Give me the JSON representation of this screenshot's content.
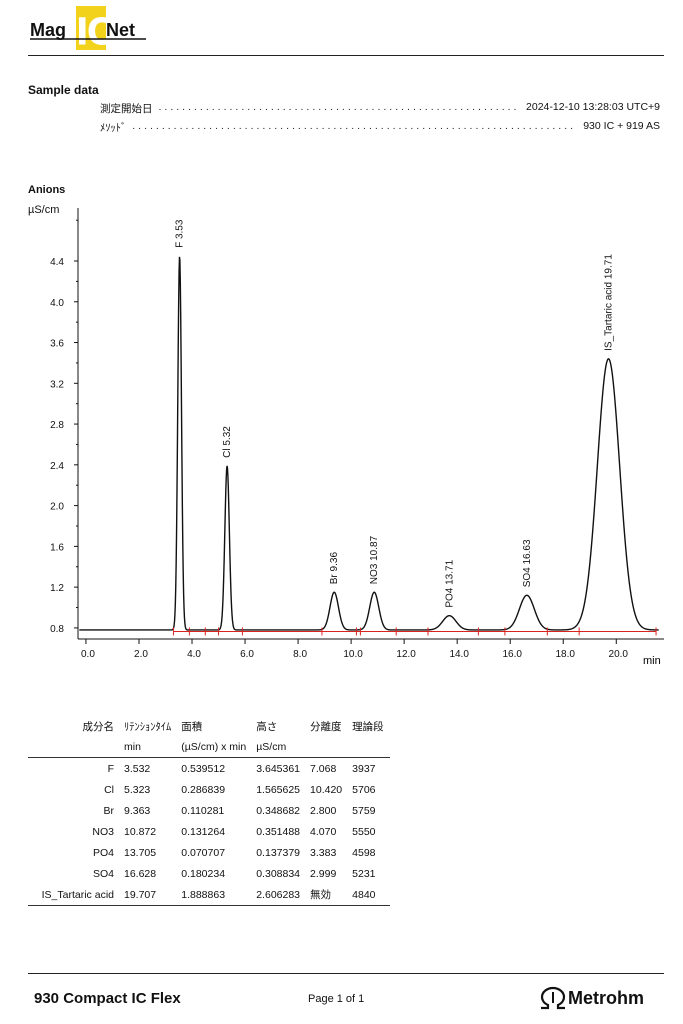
{
  "header": {
    "logo_text_left": "Mag",
    "logo_text_mid": "IC",
    "logo_text_right": "Net",
    "logo_color": "#F2D21B"
  },
  "sample": {
    "title": "Sample data",
    "date_label": "測定開始日",
    "date_value": "2024-12-10 13:28:03 UTC+9",
    "method_label": "ﾒｿｯﾄﾞ",
    "method_value": "930 IC + 919 AS"
  },
  "chart_data": {
    "type": "line",
    "title": "Anions",
    "ylabel": "µS/cm",
    "xlabel": "min",
    "xlim": [
      -0.3,
      21.8
    ],
    "ylim": [
      0.75,
      4.92
    ],
    "x_ticks": [
      "0.0",
      "2.0",
      "4.0",
      "6.0",
      "8.0",
      "10.0",
      "12.0",
      "14.0",
      "16.0",
      "18.0",
      "20.0"
    ],
    "y_ticks": [
      "0.8",
      "1.2",
      "1.6",
      "2.0",
      "2.4",
      "2.8",
      "3.2",
      "3.6",
      "4.0",
      "4.4"
    ],
    "baseline": 0.78,
    "line_color": "#111111",
    "marker_color": "#d9231e",
    "peaks": [
      {
        "label": "F 3.53",
        "rt": 3.532,
        "height": 4.45,
        "width": 0.07
      },
      {
        "label": "Cl 5.32",
        "rt": 5.323,
        "height": 2.39,
        "width": 0.085
      },
      {
        "label": "Br 9.36",
        "rt": 9.363,
        "height": 1.15,
        "width": 0.16
      },
      {
        "label": "NO3 10.87",
        "rt": 10.872,
        "height": 1.15,
        "width": 0.17
      },
      {
        "label": "PO4 13.71",
        "rt": 13.705,
        "height": 0.92,
        "width": 0.25
      },
      {
        "label": "SO4 16.63",
        "rt": 16.628,
        "height": 1.12,
        "width": 0.28
      },
      {
        "label": "IS_Tartaric acid 19.71",
        "rt": 19.707,
        "height": 3.44,
        "width": 0.42
      }
    ],
    "integration_markers": [
      3.3,
      3.9,
      4.5,
      5.0,
      5.9,
      8.9,
      10.2,
      10.35,
      11.7,
      12.9,
      14.8,
      15.8,
      17.4,
      18.6,
      21.5
    ]
  },
  "table": {
    "headers": [
      "成分名",
      "ﾘﾃﾝｼｮﾝﾀｲﾑ",
      "面積",
      "高さ",
      "分離度",
      "理論段"
    ],
    "units": [
      "",
      "min",
      "(µS/cm) x min",
      "µS/cm",
      "",
      ""
    ],
    "rows": [
      [
        "F",
        "3.532",
        "0.539512",
        "3.645361",
        "7.068",
        "3937"
      ],
      [
        "Cl",
        "5.323",
        "0.286839",
        "1.565625",
        "10.420",
        "5706"
      ],
      [
        "Br",
        "9.363",
        "0.110281",
        "0.348682",
        "2.800",
        "5759"
      ],
      [
        "NO3",
        "10.872",
        "0.131264",
        "0.351488",
        "4.070",
        "5550"
      ],
      [
        "PO4",
        "13.705",
        "0.070707",
        "0.137379",
        "3.383",
        "4598"
      ],
      [
        "SO4",
        "16.628",
        "0.180234",
        "0.308834",
        "2.999",
        "5231"
      ],
      [
        "IS_Tartaric acid",
        "19.707",
        "1.888863",
        "2.606283",
        "無効",
        "4840"
      ]
    ]
  },
  "footer": {
    "model": "930 Compact IC Flex",
    "page": "Page 1 of 1",
    "brand": "Metrohm",
    "brand_icon": "metrohm-omega-icon"
  }
}
